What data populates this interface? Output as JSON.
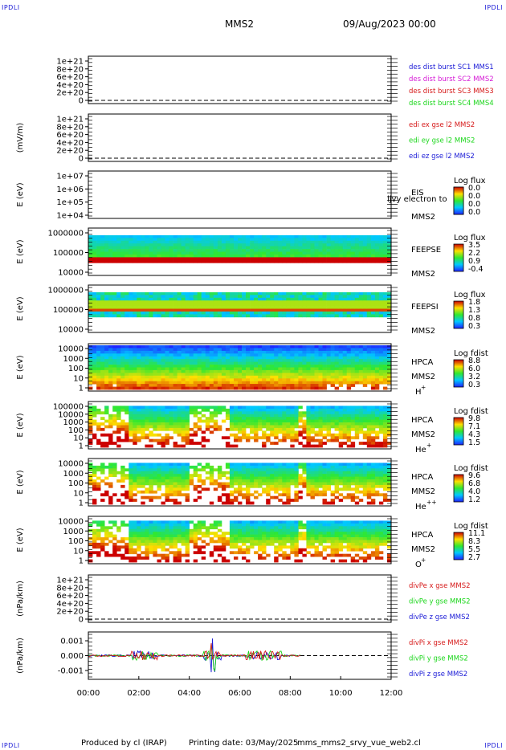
{
  "header": {
    "corner_tl": "IPDLI",
    "corner_tr": "IPDLI",
    "corner_bl": "IPDLI",
    "corner_br": "IPDLI",
    "spacecraft": "MMS2",
    "date": "09/Aug/2023 00:00"
  },
  "footer": {
    "produced_by": "Produced by  cl (IRAP)",
    "printing_date": "Printing date: 03/May/2025",
    "script_name": "mms_mms2_srvy_vue_web2.cl"
  },
  "colors": {
    "frame": "#000000",
    "blue": "#1a1ad6",
    "magenta": "#d61ad6",
    "red": "#d61a1a",
    "green": "#1ad61a",
    "spectrum_low": "#0000ff",
    "spectrum_high": "#cc0000"
  },
  "chart_data": [
    {
      "type": "line",
      "ylabel": "",
      "yticks": [
        "1e+21",
        "8e+20",
        "6e+20",
        "4e+20",
        "2e+20",
        "0"
      ],
      "series": [
        {
          "name": "des dist burst SC1 MMS1",
          "color": "#1a1ad6",
          "values": []
        },
        {
          "name": "des dist burst SC2 MMS2",
          "color": "#d61ad6",
          "values": []
        },
        {
          "name": "des dist burst SC3 MMS3",
          "color": "#d61a1a",
          "values": []
        },
        {
          "name": "des dist burst SC4 MMS4",
          "color": "#1ad61a",
          "values": []
        }
      ],
      "zero_line": "dashed"
    },
    {
      "type": "line",
      "ylabel": "(mV/m)",
      "yticks": [
        "1e+21",
        "8e+20",
        "6e+20",
        "4e+20",
        "2e+20",
        "0"
      ],
      "series": [
        {
          "name": "edi ex gse l2 MMS2",
          "color": "#d61a1a",
          "values": []
        },
        {
          "name": "edi ey gse l2 MMS2",
          "color": "#1ad61a",
          "values": []
        },
        {
          "name": "edi ez gse l2 MMS2",
          "color": "#1a1ad6",
          "values": []
        }
      ],
      "zero_line": "dashed"
    },
    {
      "type": "heatmap",
      "ylabel": "E (eV)",
      "yticks": [
        "1e+07",
        "1e+06",
        "1e+05",
        "1e+04"
      ],
      "instrument": "EIS",
      "instrument_overlap": "ljvy electron to",
      "spacecraft": "MMS2",
      "colorbar_title": "Log flux",
      "colorbar_ticks": [
        "0.0",
        "0.0",
        "0.0",
        "0.0"
      ],
      "empty": true
    },
    {
      "type": "heatmap",
      "ylabel": "E (eV)",
      "yticks": [
        "1000000",
        "100000",
        "10000"
      ],
      "instrument": "FEEPSE",
      "spacecraft": "MMS2",
      "colorbar_title": "Log flux",
      "colorbar_ticks": [
        "3.5",
        "2.2",
        "0.9",
        "-0.4"
      ]
    },
    {
      "type": "heatmap",
      "ylabel": "E (eV)",
      "yticks": [
        "1000000",
        "100000",
        "10000"
      ],
      "instrument": "FEEPSI",
      "spacecraft": "MMS2",
      "colorbar_title": "Log flux",
      "colorbar_ticks": [
        "1.8",
        "1.3",
        "0.8",
        "0.3"
      ]
    },
    {
      "type": "heatmap",
      "ylabel": "E (eV)",
      "yticks": [
        "10000",
        "1000",
        "100",
        "10",
        "1"
      ],
      "instrument": "HPCA",
      "spacecraft": "MMS2",
      "species": "H",
      "species_charge": "+",
      "colorbar_title": "Log fdist",
      "colorbar_ticks": [
        "8.8",
        "6.0",
        "3.2",
        "0.3"
      ]
    },
    {
      "type": "heatmap",
      "ylabel": "E (eV)",
      "yticks": [
        "100000",
        "10000",
        "1000",
        "100",
        "10",
        "1"
      ],
      "instrument": "HPCA",
      "spacecraft": "MMS2",
      "species": "He",
      "species_charge": "+",
      "colorbar_title": "Log fdist",
      "colorbar_ticks": [
        "9.8",
        "7.1",
        "4.3",
        "1.5"
      ]
    },
    {
      "type": "heatmap",
      "ylabel": "E (eV)",
      "yticks": [
        "10000",
        "1000",
        "100",
        "10",
        "1"
      ],
      "instrument": "HPCA",
      "spacecraft": "MMS2",
      "species": "He",
      "species_charge": "++",
      "colorbar_title": "Log fdist",
      "colorbar_ticks": [
        "9.6",
        "6.8",
        "4.0",
        "1.2"
      ]
    },
    {
      "type": "heatmap",
      "ylabel": "E (eV)",
      "yticks": [
        "10000",
        "1000",
        "100",
        "10",
        "1"
      ],
      "instrument": "HPCA",
      "spacecraft": "MMS2",
      "species": "O",
      "species_charge": "+",
      "colorbar_title": "Log fdist",
      "colorbar_ticks": [
        "11.1",
        "8.3",
        "5.5",
        "2.7"
      ]
    },
    {
      "type": "line",
      "ylabel": "(nPa/km)",
      "yticks": [
        "1e+21",
        "8e+20",
        "6e+20",
        "4e+20",
        "2e+20",
        "0"
      ],
      "series": [
        {
          "name": "divPe x gse MMS2",
          "color": "#d61a1a",
          "values": []
        },
        {
          "name": "divPe y gse MMS2",
          "color": "#1ad61a",
          "values": []
        },
        {
          "name": "divPe z gse MMS2",
          "color": "#1a1ad6",
          "values": []
        }
      ],
      "zero_line": "dashed"
    },
    {
      "type": "line",
      "ylabel": "(nPa/km)",
      "yticks": [
        "0.001",
        "0.000",
        "-0.001"
      ],
      "ylim": [
        -0.0015,
        0.0015
      ],
      "series": [
        {
          "name": "divPi x gse MMS2",
          "color": "#d61a1a"
        },
        {
          "name": "divPi y gse MMS2",
          "color": "#1ad61a"
        },
        {
          "name": "divPi z gse MMS2",
          "color": "#1a1ad6"
        }
      ],
      "zero_line": "dashed",
      "xticks": [
        "00:00",
        "02:00",
        "04:00",
        "06:00",
        "08:00",
        "10:00",
        "12:00"
      ]
    }
  ]
}
